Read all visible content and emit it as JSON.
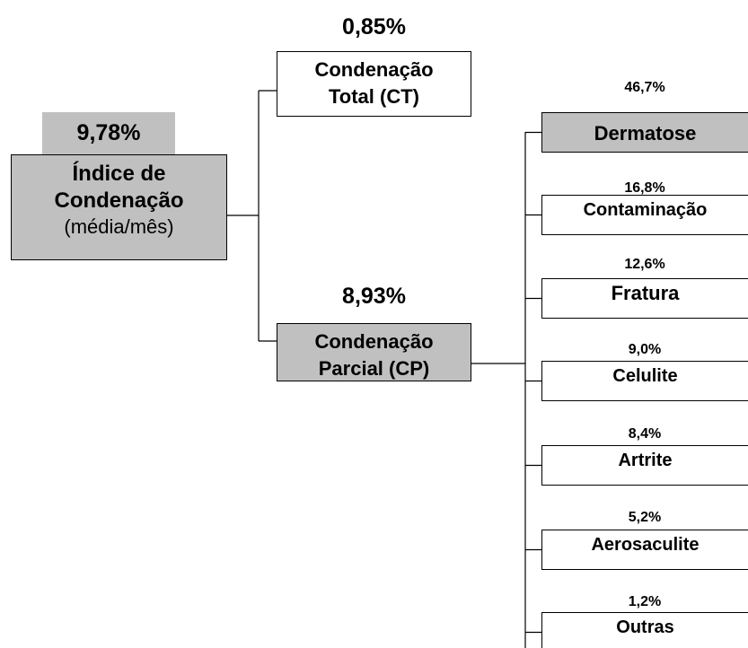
{
  "root": {
    "percent": "9,78%",
    "label": [
      "Índice de",
      "Condenação"
    ],
    "sublabel": "(média/mês)"
  },
  "total": {
    "percent": "0,85%",
    "label": [
      "Condenação",
      "Total (CT)"
    ]
  },
  "partial": {
    "percent": "8,93%",
    "label": [
      "Condenação",
      "Parcial (CP)"
    ],
    "children": [
      {
        "percent": "46,7%",
        "label": "Dermatose"
      },
      {
        "percent": "16,8%",
        "label": "Contaminação"
      },
      {
        "percent": "12,6%",
        "label": "Fratura"
      },
      {
        "percent": "9,0%",
        "label": "Celulite"
      },
      {
        "percent": "8,4%",
        "label": "Artrite"
      },
      {
        "percent": "5,2%",
        "label": "Aerosaculite"
      },
      {
        "percent": "1,2%",
        "label": "Outras"
      }
    ]
  }
}
